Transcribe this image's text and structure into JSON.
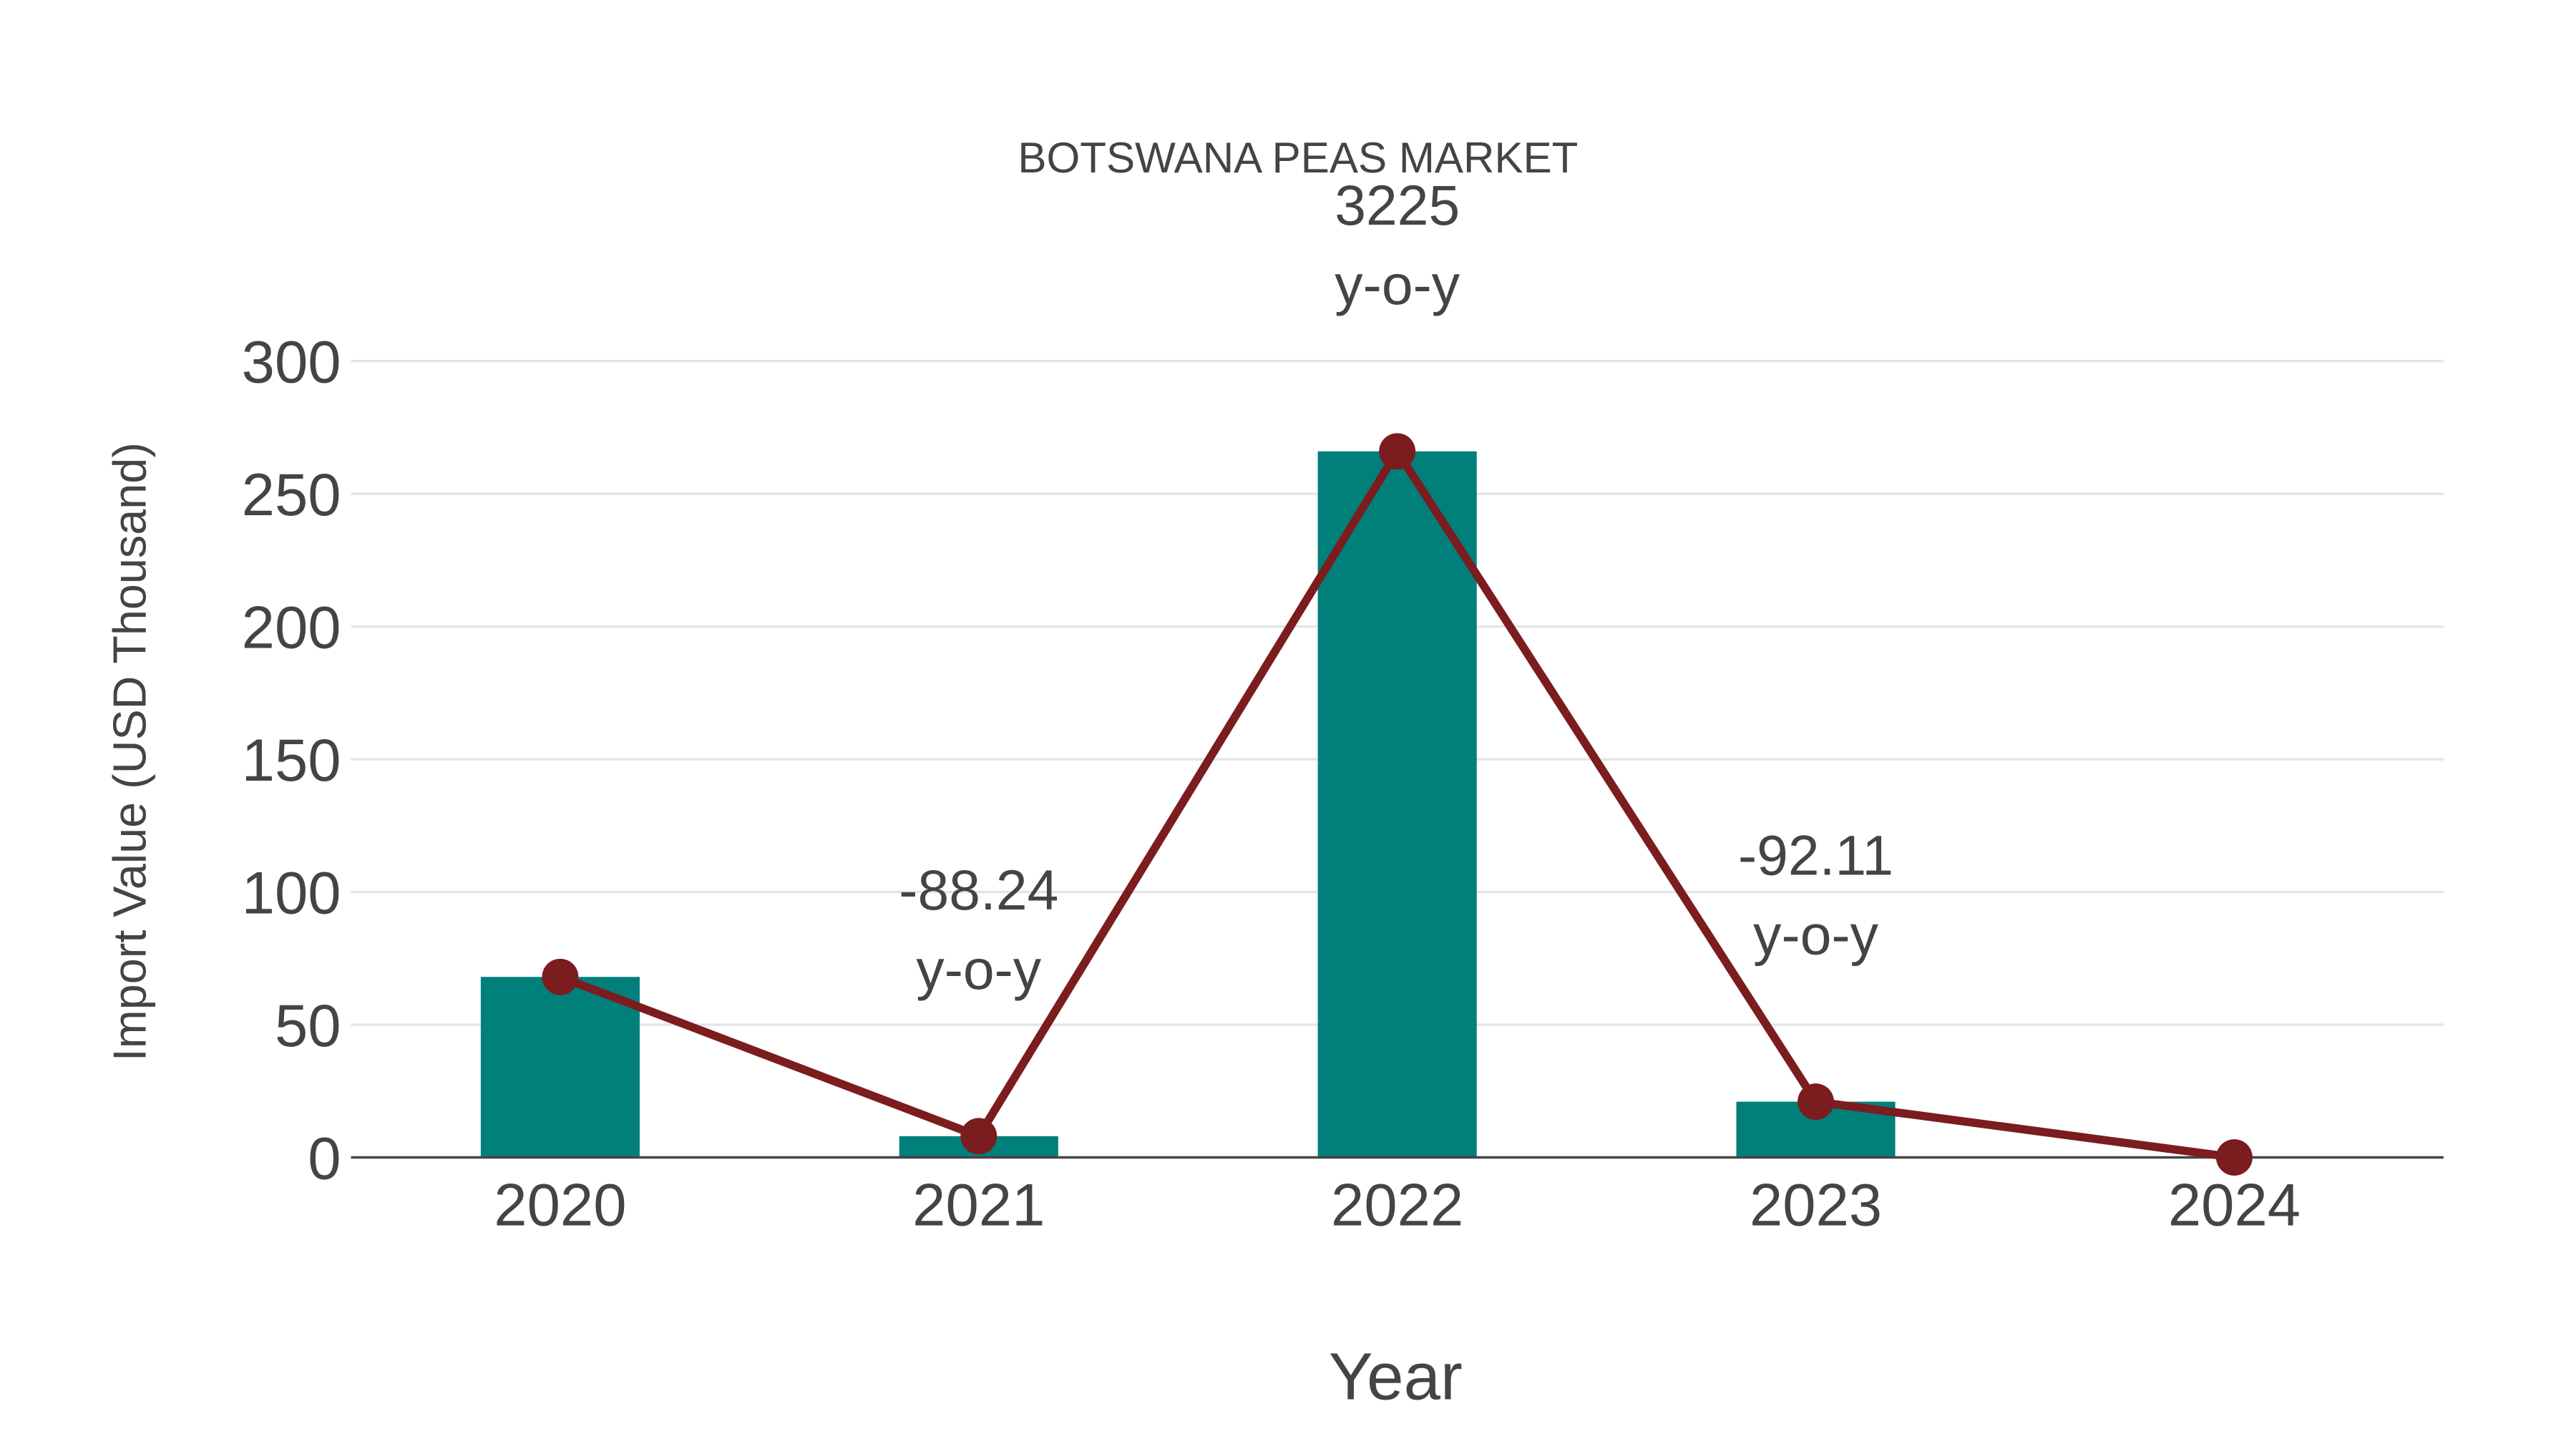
{
  "chart_data": {
    "type": "bar",
    "title": "BOTSWANA PEAS MARKET",
    "xlabel": "Year",
    "ylabel": "Import Value (USD Thousand)",
    "categories": [
      "2020",
      "2021",
      "2022",
      "2023",
      "2024"
    ],
    "ylim": [
      0,
      300
    ],
    "yticks": [
      0,
      50,
      100,
      150,
      200,
      250,
      300
    ],
    "grid": true,
    "series": [
      {
        "name": "Import Value",
        "kind": "bar",
        "color": "#007f7b",
        "values": [
          68,
          8,
          266,
          21,
          0
        ]
      },
      {
        "name": "Trend",
        "kind": "line",
        "color": "#7b1c1f",
        "values": [
          68,
          8,
          266,
          21,
          0
        ]
      }
    ],
    "annotations": [
      {
        "category": "2021",
        "value": "-88.24",
        "suffix": "y-o-y"
      },
      {
        "category": "2022",
        "value": "3225",
        "suffix": "y-o-y"
      },
      {
        "category": "2023",
        "value": "-92.11",
        "suffix": "y-o-y"
      }
    ]
  }
}
